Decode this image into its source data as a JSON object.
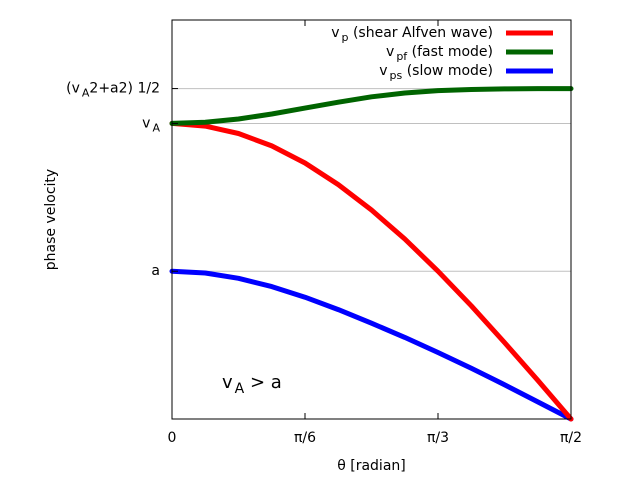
{
  "chart_data": {
    "type": "line",
    "xlabel": "θ  [radian]",
    "ylabel": "phase velocity",
    "xlim": [
      0,
      1.5708
    ],
    "ylim": [
      0,
      1.35
    ],
    "grid": "horizontal lines at ytick levels",
    "legend_placement": "top-right",
    "annotation": {
      "main": "v",
      "sub": "A",
      "tail": " > a"
    },
    "xticks": [
      {
        "value": 0,
        "label": "0"
      },
      {
        "value": 0.5236,
        "label": "π/6"
      },
      {
        "value": 1.0472,
        "label": "π/3"
      },
      {
        "value": 1.5708,
        "label": "π/2"
      }
    ],
    "yticks": [
      {
        "value": 0.5,
        "main": "a",
        "sub": "",
        "tail": ""
      },
      {
        "value": 1.0,
        "main": "v",
        "sub": "A",
        "tail": ""
      },
      {
        "value": 1.118,
        "main": "(v",
        "sub": "A",
        "tail": "2+a2) 1/2"
      }
    ],
    "series": [
      {
        "key": "vp",
        "label_main": "v",
        "label_sub": "p",
        "label_tail": " (shear Alfven wave)",
        "color": "#ff0000",
        "x": [
          0,
          0.1309,
          0.2618,
          0.3927,
          0.5236,
          0.6545,
          0.7854,
          0.9163,
          1.0472,
          1.1781,
          1.309,
          1.4399,
          1.5708
        ],
        "y": [
          1.0,
          0.991,
          0.966,
          0.924,
          0.866,
          0.793,
          0.707,
          0.609,
          0.5,
          0.383,
          0.259,
          0.131,
          0.0
        ]
      },
      {
        "key": "vpf",
        "label_main": "v",
        "label_sub": "pf",
        "label_tail": " (fast mode)",
        "color": "#006400",
        "x": [
          0,
          0.1309,
          0.2618,
          0.3927,
          0.5236,
          0.6545,
          0.7854,
          0.9163,
          1.0472,
          1.1781,
          1.309,
          1.4399,
          1.5708
        ],
        "y": [
          1.0,
          1.004,
          1.015,
          1.032,
          1.052,
          1.072,
          1.09,
          1.103,
          1.111,
          1.115,
          1.117,
          1.118,
          1.118
        ]
      },
      {
        "key": "vps",
        "label_main": "v",
        "label_sub": "ps",
        "label_tail": " (slow mode)",
        "color": "#0000ff",
        "x": [
          0,
          0.1309,
          0.2618,
          0.3927,
          0.5236,
          0.6545,
          0.7854,
          0.9163,
          1.0472,
          1.1781,
          1.309,
          1.4399,
          1.5708
        ],
        "y": [
          0.5,
          0.494,
          0.476,
          0.448,
          0.412,
          0.37,
          0.324,
          0.276,
          0.225,
          0.172,
          0.116,
          0.058,
          0.0
        ]
      }
    ]
  }
}
